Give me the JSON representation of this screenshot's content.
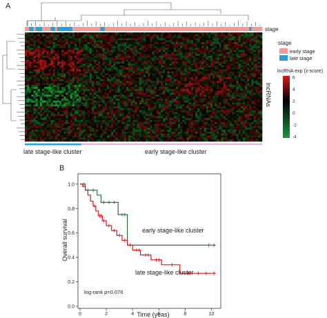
{
  "panel_a": {
    "label": "A",
    "stage_track_label": "stage",
    "row_axis_label": "lncRNAs",
    "legend_stage": {
      "title": "stage",
      "items": [
        {
          "label": "early stage",
          "color": "#f29a9a"
        },
        {
          "label": "late stage",
          "color": "#2a9fd6"
        }
      ]
    },
    "colorbar": {
      "title": "lncRNA exp (z-score)",
      "ticks": [
        "6",
        "4",
        "2",
        "0",
        "-2",
        "-4"
      ],
      "high_color": "#d7191c",
      "mid_color": "#000000",
      "low_color": "#1a9641"
    },
    "clusters": [
      {
        "label": "late stage-like cluster",
        "color": "#2a9fd6"
      },
      {
        "label": "early stage-like cluster",
        "color": "#e9a9e0"
      }
    ]
  },
  "panel_b": {
    "label": "B"
  },
  "chart_data": {
    "type": "line",
    "ylabel": "Overall survival",
    "xlabel": "Time (yeas)",
    "xlim": [
      0,
      10.5
    ],
    "ylim": [
      0,
      1.05
    ],
    "x_ticks": [
      "0",
      "2",
      "4",
      "6",
      "8",
      "10"
    ],
    "y_ticks": [
      "0.0",
      "0.2",
      "0.4",
      "0.6",
      "0.8",
      "1.0"
    ],
    "annotation": "log-rank p=0.076",
    "series": [
      {
        "name": "early stage-like cluster",
        "color": "#2e6b3a",
        "steps": [
          [
            0,
            1.0
          ],
          [
            0.4,
            1.0
          ],
          [
            0.4,
            0.95
          ],
          [
            1.3,
            0.95
          ],
          [
            1.3,
            0.91
          ],
          [
            1.6,
            0.91
          ],
          [
            1.6,
            0.85
          ],
          [
            2.9,
            0.85
          ],
          [
            2.9,
            0.75
          ],
          [
            3.6,
            0.75
          ],
          [
            3.6,
            0.5
          ],
          [
            10.3,
            0.5
          ]
        ],
        "censors": [
          [
            0.3,
            1.0
          ],
          [
            0.6,
            0.95
          ],
          [
            1.0,
            0.95
          ],
          [
            1.8,
            0.85
          ],
          [
            2.2,
            0.85
          ],
          [
            2.6,
            0.85
          ],
          [
            3.2,
            0.75
          ],
          [
            3.4,
            0.75
          ],
          [
            9.8,
            0.5
          ],
          [
            10.2,
            0.5
          ]
        ]
      },
      {
        "name": "late stage-like cluster",
        "color": "#d7191c",
        "steps": [
          [
            0,
            1.0
          ],
          [
            0.2,
            1.0
          ],
          [
            0.2,
            0.98
          ],
          [
            0.4,
            0.98
          ],
          [
            0.4,
            0.95
          ],
          [
            0.6,
            0.95
          ],
          [
            0.6,
            0.91
          ],
          [
            0.8,
            0.91
          ],
          [
            0.8,
            0.86
          ],
          [
            1.0,
            0.86
          ],
          [
            1.0,
            0.82
          ],
          [
            1.2,
            0.82
          ],
          [
            1.2,
            0.78
          ],
          [
            1.4,
            0.78
          ],
          [
            1.4,
            0.74
          ],
          [
            1.7,
            0.74
          ],
          [
            1.7,
            0.7
          ],
          [
            2.0,
            0.7
          ],
          [
            2.0,
            0.66
          ],
          [
            2.4,
            0.66
          ],
          [
            2.4,
            0.62
          ],
          [
            2.8,
            0.62
          ],
          [
            2.8,
            0.58
          ],
          [
            3.2,
            0.58
          ],
          [
            3.2,
            0.54
          ],
          [
            3.6,
            0.54
          ],
          [
            3.6,
            0.5
          ],
          [
            4.0,
            0.5
          ],
          [
            4.0,
            0.46
          ],
          [
            4.6,
            0.46
          ],
          [
            4.6,
            0.42
          ],
          [
            5.4,
            0.42
          ],
          [
            5.4,
            0.38
          ],
          [
            6.2,
            0.38
          ],
          [
            6.2,
            0.34
          ],
          [
            7.6,
            0.34
          ],
          [
            7.6,
            0.27
          ],
          [
            10.3,
            0.27
          ]
        ],
        "censors": [
          [
            1.1,
            0.82
          ],
          [
            1.5,
            0.74
          ],
          [
            1.6,
            0.74
          ],
          [
            1.8,
            0.7
          ],
          [
            2.2,
            0.66
          ],
          [
            2.6,
            0.62
          ],
          [
            3.0,
            0.58
          ],
          [
            3.4,
            0.54
          ],
          [
            3.8,
            0.5
          ],
          [
            4.3,
            0.46
          ],
          [
            4.5,
            0.46
          ],
          [
            5.0,
            0.42
          ],
          [
            5.2,
            0.42
          ],
          [
            5.8,
            0.38
          ],
          [
            6.0,
            0.38
          ],
          [
            7.0,
            0.34
          ],
          [
            8.2,
            0.27
          ],
          [
            9.0,
            0.27
          ],
          [
            9.6,
            0.27
          ],
          [
            10.2,
            0.27
          ]
        ]
      }
    ]
  }
}
